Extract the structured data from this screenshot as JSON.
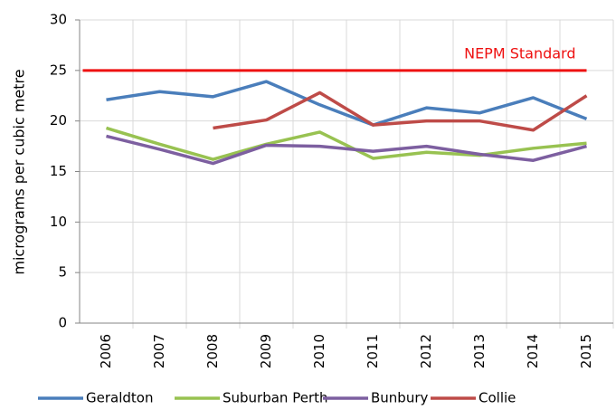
{
  "chart_data": {
    "type": "line",
    "y_label": "micrograms per cubic metre",
    "categories": [
      "2006",
      "2007",
      "2008",
      "2009",
      "2010",
      "2011",
      "2012",
      "2013",
      "2014",
      "2015"
    ],
    "series": [
      {
        "name": "Geraldton",
        "color": "#4a7ebb",
        "values": [
          22.1,
          22.9,
          22.4,
          23.9,
          21.6,
          19.6,
          21.3,
          20.8,
          22.3,
          20.2
        ]
      },
      {
        "name": "Suburban Perth",
        "color": "#98c251",
        "values": [
          19.3,
          17.7,
          16.2,
          17.7,
          18.9,
          16.3,
          16.9,
          16.6,
          17.3,
          17.8
        ]
      },
      {
        "name": "Bunbury",
        "color": "#7d5fa0",
        "values": [
          18.5,
          17.2,
          15.8,
          17.6,
          17.5,
          17.0,
          17.5,
          16.7,
          16.1,
          17.5
        ]
      },
      {
        "name": "Collie",
        "color": "#be4b48",
        "values": [
          null,
          null,
          19.3,
          20.1,
          22.8,
          19.6,
          20.0,
          20.0,
          19.1,
          22.5
        ]
      }
    ],
    "reference_line": {
      "value": 25,
      "label": "NEPM Standard",
      "color": "#ee1111"
    },
    "ylim": [
      0,
      30
    ],
    "yticks": [
      0,
      5,
      10,
      15,
      20,
      25,
      30
    ],
    "grid": true,
    "legend": "bottom"
  }
}
